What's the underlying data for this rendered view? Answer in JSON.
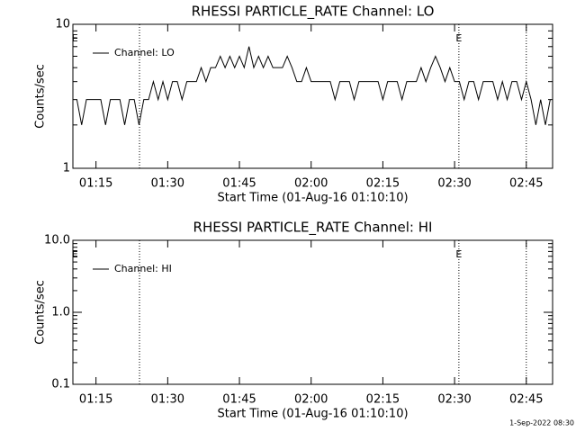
{
  "chart_data": [
    {
      "type": "line",
      "title": "RHESSI PARTICLE_RATE Channel: LO",
      "xlabel": "Start Time (01-Aug-16 01:10:10)",
      "ylabel": "Counts/sec",
      "log_y": true,
      "ylim": [
        1,
        10
      ],
      "yticks": [
        1,
        10
      ],
      "xlim": [
        70.17,
        170.5
      ],
      "xticks": [
        {
          "value": 75,
          "label": "01:15"
        },
        {
          "value": 90,
          "label": "01:30"
        },
        {
          "value": 105,
          "label": "01:45"
        },
        {
          "value": 120,
          "label": "02:00"
        },
        {
          "value": 135,
          "label": "02:15"
        },
        {
          "value": 150,
          "label": "02:30"
        },
        {
          "value": 165,
          "label": "02:45"
        }
      ],
      "legend": "upper left",
      "event_lines": [
        84.1,
        150.9,
        165.0
      ],
      "event_labels": [
        {
          "text": "E",
          "x": 70.6
        },
        {
          "text": "E",
          "x": 150.9
        }
      ],
      "x": [
        71,
        72,
        73,
        74,
        75,
        76,
        77,
        78,
        79,
        80,
        81,
        82,
        83,
        84,
        85,
        86,
        87,
        88,
        89,
        90,
        91,
        92,
        93,
        94,
        95,
        96,
        97,
        98,
        99,
        100,
        101,
        102,
        103,
        104,
        105,
        106,
        107,
        108,
        109,
        110,
        111,
        112,
        113,
        114,
        115,
        116,
        117,
        118,
        119,
        120,
        121,
        122,
        123,
        124,
        125,
        126,
        127,
        128,
        129,
        130,
        131,
        132,
        133,
        134,
        135,
        136,
        137,
        138,
        139,
        140,
        141,
        142,
        143,
        144,
        145,
        146,
        147,
        148,
        149,
        150,
        151,
        152,
        153,
        154,
        155,
        156,
        157,
        158,
        159,
        160,
        161,
        162,
        163,
        164,
        165,
        166,
        167,
        168,
        169,
        170
      ],
      "series": [
        {
          "name": "Channel: LO",
          "color": "#000000",
          "values": [
            3,
            2,
            3,
            3,
            3,
            3,
            2,
            3,
            3,
            3,
            2,
            3,
            3,
            2,
            3,
            3,
            4,
            3,
            4,
            3,
            4,
            4,
            3,
            4,
            4,
            4,
            5,
            4,
            5,
            5,
            6,
            5,
            6,
            5,
            6,
            5,
            7,
            5,
            6,
            5,
            6,
            5,
            5,
            5,
            6,
            5,
            4,
            4,
            5,
            4,
            4,
            4,
            4,
            4,
            3,
            4,
            4,
            4,
            3,
            4,
            4,
            4,
            4,
            4,
            3,
            4,
            4,
            4,
            3,
            4,
            4,
            4,
            5,
            4,
            5,
            6,
            5,
            4,
            5,
            4,
            4,
            3,
            4,
            4,
            3,
            4,
            4,
            4,
            3,
            4,
            3,
            4,
            4,
            3,
            4,
            3,
            2,
            3,
            2,
            3
          ]
        }
      ]
    },
    {
      "type": "line",
      "title": "RHESSI PARTICLE_RATE Channel: HI",
      "xlabel": "Start Time (01-Aug-16 01:10:10)",
      "ylabel": "Counts/sec",
      "log_y": true,
      "ylim": [
        0.1,
        10
      ],
      "yticks": [
        0.1,
        {
          "value": 1,
          "label": "1.0"
        },
        {
          "value": 10,
          "label": "10.0"
        }
      ],
      "xlim": [
        70.17,
        170.5
      ],
      "xticks": [
        {
          "value": 75,
          "label": "01:15"
        },
        {
          "value": 90,
          "label": "01:30"
        },
        {
          "value": 105,
          "label": "01:45"
        },
        {
          "value": 120,
          "label": "02:00"
        },
        {
          "value": 135,
          "label": "02:15"
        },
        {
          "value": 150,
          "label": "02:30"
        },
        {
          "value": 165,
          "label": "02:45"
        }
      ],
      "legend": "upper left",
      "event_lines": [
        84.1,
        150.9,
        165.0
      ],
      "event_labels": [
        {
          "text": "E",
          "x": 70.6
        },
        {
          "text": "E",
          "x": 150.9
        }
      ],
      "x": [],
      "series": [
        {
          "name": "Channel: HI",
          "color": "#000000",
          "values": []
        }
      ]
    }
  ],
  "footer": "1-Sep-2022 08:30"
}
